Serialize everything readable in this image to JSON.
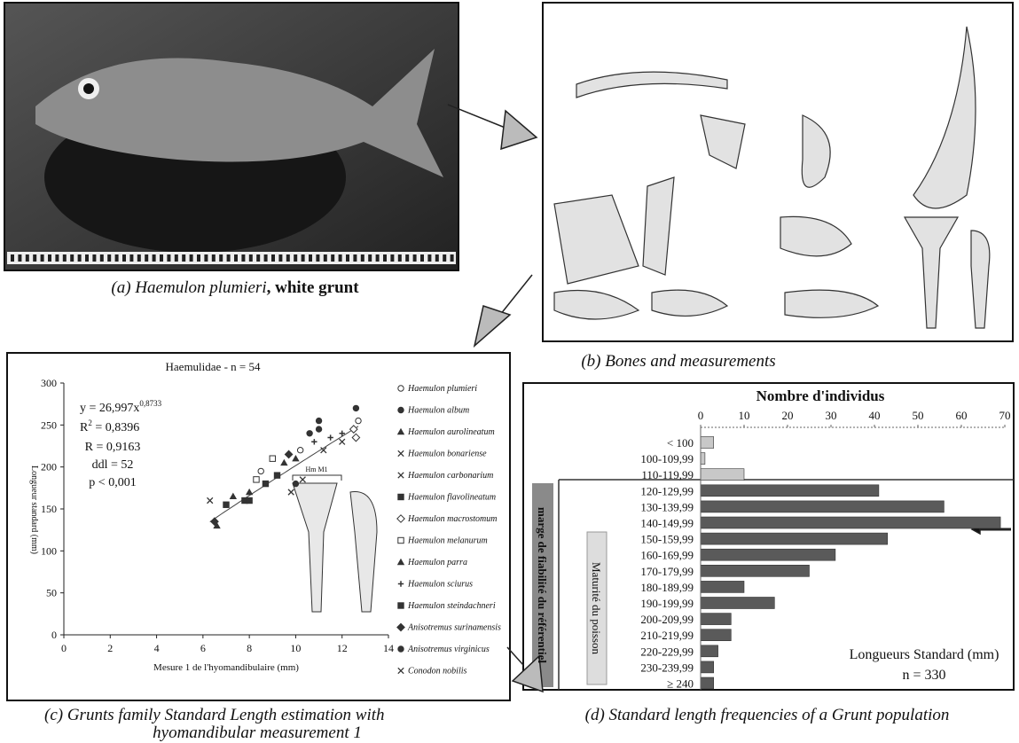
{
  "captions": {
    "a": [
      "(a) ",
      "Haemulon plumieri",
      ", white grunt"
    ],
    "b": "(b) Bones and measurements",
    "c": [
      "(c) Grunts family Standard Length estimation with",
      "hyomandibular measurement 1"
    ],
    "d": "(d) Standard length frequencies of a Grunt population"
  },
  "chart_data": [
    {
      "type": "scatter",
      "title": "Haemulidae - n = 54",
      "xlabel": "Mesure 1 de l'hyomandibulaire (mm)",
      "ylabel": "Longueur standard (mm)",
      "xlim": [
        0,
        14
      ],
      "xticks": [
        0,
        2,
        4,
        6,
        8,
        10,
        12,
        14
      ],
      "ylim": [
        0,
        300
      ],
      "yticks": [
        0,
        50,
        100,
        150,
        200,
        250,
        300
      ],
      "equation": {
        "prefix": "y = ",
        "coefficient": {
          "value": 26.997,
          "label": "26,997"
        },
        "variable": "x",
        "exponent": {
          "value": 0.8733,
          "label": "0,8733"
        }
      },
      "r_squared": {
        "symbol": "R",
        "superscript": "2",
        "text": " = 0,8396"
      },
      "annotations": [
        "R = 0,9163",
        "ddl = 52",
        "p < 0,001"
      ],
      "inset_label": "Hm M1",
      "color": "#333333",
      "series": [
        {
          "name": "Haemulon plumieri",
          "marker": "circle-open",
          "x": [
            8.5,
            10.2,
            12.7
          ],
          "values": [
            195,
            220,
            255
          ]
        },
        {
          "name": "Haemulon album",
          "marker": "circle",
          "x": [
            10.6,
            12.6,
            11.0
          ],
          "values": [
            240,
            270,
            245
          ]
        },
        {
          "name": "Haemulon aurolineatum",
          "marker": "triangle",
          "x": [
            6.6,
            7.3,
            8.0
          ],
          "values": [
            130,
            165,
            170
          ]
        },
        {
          "name": "Haemulon bonariense",
          "marker": "x",
          "x": [
            6.3,
            9.8
          ],
          "values": [
            160,
            170
          ]
        },
        {
          "name": "Haemulon carbonarium",
          "marker": "x",
          "x": [
            10.3,
            11.2
          ],
          "values": [
            185,
            220
          ]
        },
        {
          "name": "Haemulon flavolineatum",
          "marker": "square",
          "x": [
            7.8,
            8.7,
            9.2
          ],
          "values": [
            160,
            180,
            190
          ]
        },
        {
          "name": "Haemulon macrostomum",
          "marker": "diamond-open",
          "x": [
            12.5,
            12.6
          ],
          "values": [
            245,
            235
          ]
        },
        {
          "name": "Haemulon melanurum",
          "marker": "square-open",
          "x": [
            8.3,
            9.0
          ],
          "values": [
            185,
            210
          ]
        },
        {
          "name": "Haemulon parra",
          "marker": "triangle",
          "x": [
            9.5,
            10.0
          ],
          "values": [
            205,
            210
          ]
        },
        {
          "name": "Haemulon sciurus",
          "marker": "plus",
          "x": [
            10.8,
            11.5,
            12.0
          ],
          "values": [
            230,
            235,
            240
          ]
        },
        {
          "name": "Haemulon steindachneri",
          "marker": "square",
          "x": [
            7.0,
            8.0
          ],
          "values": [
            155,
            160
          ]
        },
        {
          "name": "Anisotremus surinamensis",
          "marker": "diamond",
          "x": [
            6.5,
            9.7
          ],
          "values": [
            135,
            215
          ]
        },
        {
          "name": "Anisotremus virginicus",
          "marker": "circle",
          "x": [
            10.0,
            11.0
          ],
          "values": [
            180,
            255
          ]
        },
        {
          "name": "Conodon nobilis",
          "marker": "x",
          "x": [
            12.0
          ],
          "values": [
            230
          ]
        }
      ]
    },
    {
      "type": "bar",
      "orientation": "horizontal",
      "title": "Nombre d'individus",
      "categories": [
        "< 100",
        "100-109,99",
        "110-119,99",
        "120-129,99",
        "130-139,99",
        "140-149,99",
        "150-159,99",
        "160-169,99",
        "170-179,99",
        "180-189,99",
        "190-199,99",
        "200-209,99",
        "210-219,99",
        "220-229,99",
        "230-239,99",
        "≥ 240"
      ],
      "values": [
        3,
        1,
        10,
        41,
        56,
        69,
        43,
        31,
        25,
        10,
        17,
        7,
        7,
        4,
        3,
        3
      ],
      "colors": [
        "#c8c8c8",
        "#c8c8c8",
        "#c8c8c8",
        "#5a5a5a",
        "#5a5a5a",
        "#5a5a5a",
        "#5a5a5a",
        "#5a5a5a",
        "#5a5a5a",
        "#5a5a5a",
        "#5a5a5a",
        "#5a5a5a",
        "#5a5a5a",
        "#5a5a5a",
        "#5a5a5a",
        "#5a5a5a"
      ],
      "xlim": [
        0,
        70
      ],
      "xticks": [
        0,
        10,
        20,
        30,
        40,
        50,
        60,
        70
      ],
      "annotations": [
        "Longueurs Standard (mm)",
        "n = 330"
      ],
      "side_labels": [
        "marge de fiabilité du référentiel",
        "Maturité du poisson"
      ]
    }
  ]
}
